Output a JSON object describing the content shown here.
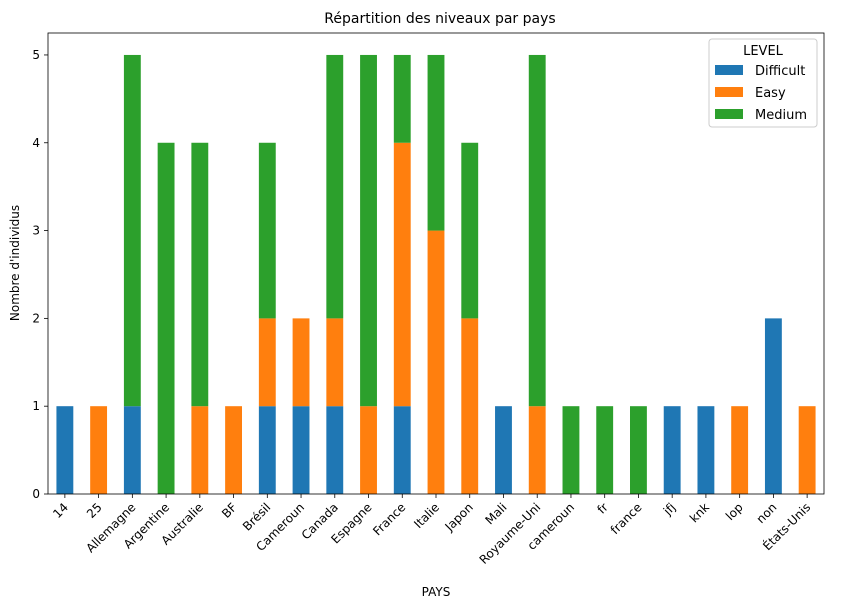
{
  "chart_data": {
    "type": "bar",
    "stacked": true,
    "title": "Répartition des niveaux par pays",
    "xlabel": "PAYS",
    "ylabel": "Nombre d'individus",
    "ylim": [
      0,
      5.25
    ],
    "yticks": [
      "0",
      "1",
      "2",
      "3",
      "4",
      "5"
    ],
    "grid": false,
    "legend": {
      "title": "LEVEL",
      "placement": "top-right"
    },
    "categories": [
      "14",
      "25",
      "Allemagne",
      "Argentine",
      "Australie",
      "BF",
      "Brésil",
      "Cameroun",
      "Canada",
      "Espagne",
      "France",
      "Italie",
      "Japon",
      "Mali",
      "Royaume-Uni",
      "cameroun",
      "fr",
      "france",
      "jfj",
      "knk",
      "lop",
      "non",
      "États-Unis"
    ],
    "series": [
      {
        "name": "Difficult",
        "color": "#1f77b4",
        "values": [
          1,
          0,
          1,
          0,
          0,
          0,
          1,
          1,
          1,
          0,
          1,
          0,
          0,
          1,
          0,
          0,
          0,
          0,
          1,
          1,
          0,
          2,
          0
        ]
      },
      {
        "name": "Easy",
        "color": "#ff7f0e",
        "values": [
          0,
          1,
          0,
          0,
          1,
          1,
          1,
          1,
          1,
          1,
          3,
          3,
          2,
          0,
          1,
          0,
          0,
          0,
          0,
          0,
          1,
          0,
          1
        ]
      },
      {
        "name": "Medium",
        "color": "#2ca02c",
        "values": [
          0,
          0,
          4,
          4,
          3,
          0,
          2,
          0,
          3,
          4,
          1,
          2,
          2,
          0,
          4,
          1,
          1,
          1,
          0,
          0,
          0,
          0,
          0
        ]
      }
    ]
  }
}
